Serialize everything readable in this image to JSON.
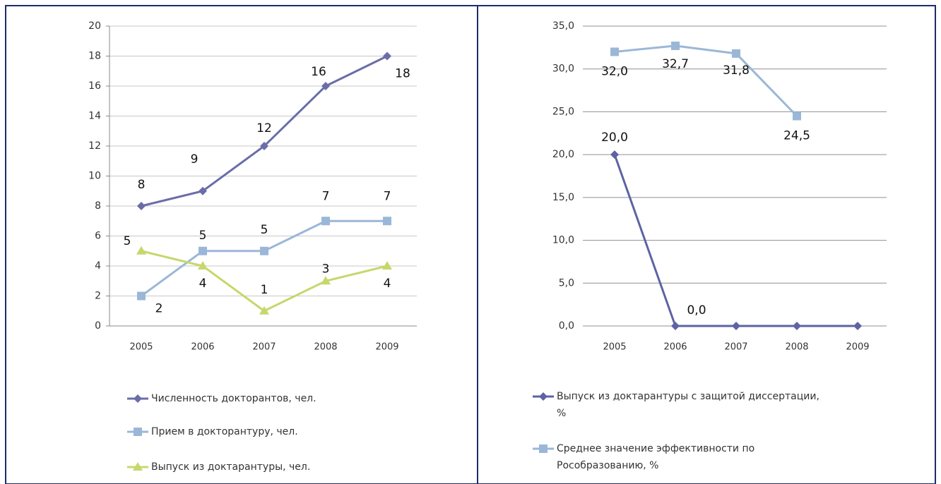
{
  "chart_data": [
    {
      "type": "line",
      "categories": [
        "2005",
        "2006",
        "2007",
        "2008",
        "2009"
      ],
      "ylim": [
        0,
        20
      ],
      "yticks": [
        0,
        2,
        4,
        6,
        8,
        10,
        12,
        14,
        16,
        18,
        20
      ],
      "grid": true,
      "legend": "bottom",
      "series": [
        {
          "name": "Численность докторантов, чел.",
          "color": "#6a6da8",
          "marker": "diamond",
          "values": [
            8,
            9,
            12,
            16,
            18
          ]
        },
        {
          "name": "Прием в докторантуру, чел.",
          "color": "#9bb7d7",
          "marker": "square",
          "values": [
            2,
            5,
            5,
            7,
            7
          ]
        },
        {
          "name": "Выпуск из доктарантуры, чел.",
          "color": "#c5d86c",
          "marker": "triangle",
          "values": [
            5,
            4,
            1,
            3,
            4
          ]
        }
      ]
    },
    {
      "type": "line",
      "categories": [
        "2005",
        "2006",
        "2007",
        "2008",
        "2009"
      ],
      "ylim": [
        0,
        35
      ],
      "yticks": [
        {
          "value": 0,
          "label": "0,0"
        },
        {
          "value": 5,
          "label": "5,0"
        },
        {
          "value": 10,
          "label": "10,0"
        },
        {
          "value": 15,
          "label": "15,0"
        },
        {
          "value": 20,
          "label": "20,0"
        },
        {
          "value": 25,
          "label": "25,0"
        },
        {
          "value": 30,
          "label": "30,0"
        },
        {
          "value": 35,
          "label": "35,0"
        }
      ],
      "grid": true,
      "legend": "bottom",
      "series": [
        {
          "name": "Выпуск из доктарантуры с защитой диссертации, %",
          "color": "#5d63a3",
          "marker": "diamond",
          "values": [
            20,
            0,
            0,
            0,
            0
          ],
          "value_labels": [
            "20,0",
            "0,0",
            null,
            null,
            null
          ]
        },
        {
          "name": "Среднее значение эффективности по Рособразованию, %",
          "color": "#9bb7d7",
          "marker": "square",
          "values": [
            32.0,
            32.7,
            31.8,
            24.5,
            null
          ],
          "value_labels": [
            "32,0",
            "32,7",
            "31,8",
            "24,5",
            null
          ]
        }
      ]
    }
  ]
}
